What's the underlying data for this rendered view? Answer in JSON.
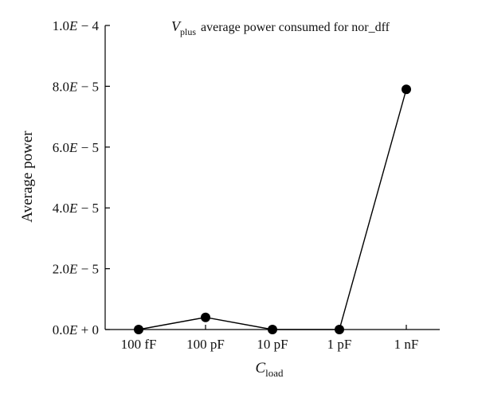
{
  "chart_data": {
    "type": "line",
    "title_var": "V",
    "title_sub": "plus",
    "title_rest": "average power consumed for nor_dff",
    "ylabel": "Average power",
    "xlabel_var": "C",
    "xlabel_sub": "load",
    "categories": [
      "100 fF",
      "100 pF",
      "10 pF",
      "1 pF",
      "1 nF"
    ],
    "series": [
      {
        "values": [
          0.0,
          4e-06,
          0.0,
          0.0,
          7.9e-05
        ]
      }
    ],
    "ylim": [
      0,
      0.0001
    ],
    "yticks": [
      {
        "value": 0.0,
        "mant": "0.0",
        "exp": "+ 0"
      },
      {
        "value": 2e-05,
        "mant": "2.0",
        "exp": "− 5"
      },
      {
        "value": 4e-05,
        "mant": "4.0",
        "exp": "− 5"
      },
      {
        "value": 6e-05,
        "mant": "6.0",
        "exp": "− 5"
      },
      {
        "value": 8e-05,
        "mant": "8.0",
        "exp": "− 5"
      },
      {
        "value": 0.0001,
        "mant": "1.0",
        "exp": "− 4"
      }
    ],
    "grid": false,
    "legend": "none",
    "colors": {
      "line": "#000000",
      "marker": "#000000",
      "axis": "#000000"
    }
  }
}
